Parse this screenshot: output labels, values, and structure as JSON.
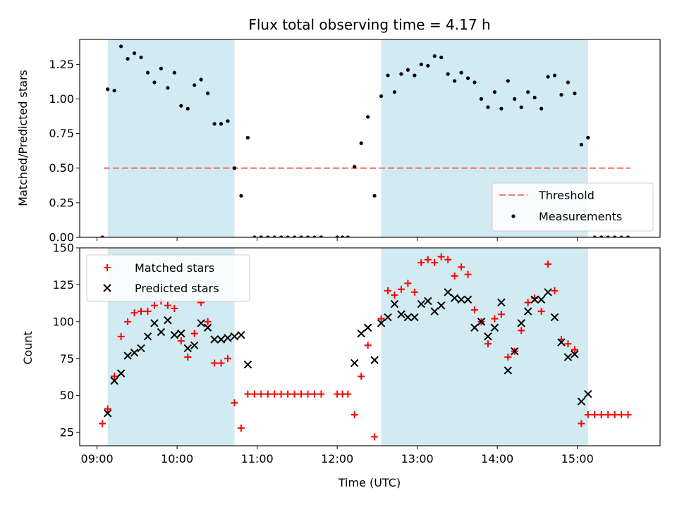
{
  "chart_data": [
    {
      "type": "scatter",
      "title": "Flux total observing time = 4.17 h",
      "xlabel": "",
      "ylabel": "Matched/Predicted stars",
      "xlim": [
        "08:47",
        "16:02"
      ],
      "ylim": [
        0,
        1.43
      ],
      "y_ticks": [
        0.0,
        0.25,
        0.5,
        0.75,
        1.0,
        1.25
      ],
      "y_tick_labels": [
        "0.00",
        "0.25",
        "0.50",
        "0.75",
        "1.00",
        "1.25"
      ],
      "threshold": {
        "name": "Threshold",
        "value": 0.5,
        "x_range": [
          "09:05",
          "15:40"
        ],
        "color": "#f47f7f"
      },
      "shaded_spans": [
        [
          "09:08",
          "10:43"
        ],
        [
          "12:33",
          "15:08"
        ]
      ],
      "shade_color": "#add8e6",
      "legend": {
        "position": "lower right",
        "entries": [
          "Threshold",
          "Measurements"
        ]
      },
      "series": [
        {
          "name": "Measurements",
          "color": "#000000",
          "points": [
            [
              "09:04",
              0.0
            ],
            [
              "09:08",
              1.07
            ],
            [
              "09:13",
              1.06
            ],
            [
              "09:18",
              1.38
            ],
            [
              "09:23",
              1.29
            ],
            [
              "09:28",
              1.33
            ],
            [
              "09:33",
              1.3
            ],
            [
              "09:38",
              1.19
            ],
            [
              "09:43",
              1.12
            ],
            [
              "09:48",
              1.22
            ],
            [
              "09:53",
              1.08
            ],
            [
              "09:58",
              1.19
            ],
            [
              "10:03",
              0.95
            ],
            [
              "10:08",
              0.93
            ],
            [
              "10:13",
              1.1
            ],
            [
              "10:18",
              1.14
            ],
            [
              "10:23",
              1.04
            ],
            [
              "10:28",
              0.82
            ],
            [
              "10:33",
              0.82
            ],
            [
              "10:38",
              0.84
            ],
            [
              "10:43",
              0.5
            ],
            [
              "10:48",
              0.3
            ],
            [
              "10:53",
              0.72
            ],
            [
              "10:58",
              0.0
            ],
            [
              "11:03",
              0.0
            ],
            [
              "11:08",
              0.0
            ],
            [
              "11:13",
              0.0
            ],
            [
              "11:18",
              0.0
            ],
            [
              "11:23",
              0.0
            ],
            [
              "11:28",
              0.0
            ],
            [
              "11:33",
              0.0
            ],
            [
              "11:38",
              0.0
            ],
            [
              "11:43",
              0.0
            ],
            [
              "11:48",
              0.0
            ],
            [
              "12:00",
              0.0
            ],
            [
              "12:04",
              0.0
            ],
            [
              "12:08",
              0.0
            ],
            [
              "12:13",
              0.51
            ],
            [
              "12:18",
              0.68
            ],
            [
              "12:23",
              0.87
            ],
            [
              "12:28",
              0.3
            ],
            [
              "12:33",
              1.02
            ],
            [
              "12:38",
              1.17
            ],
            [
              "12:43",
              1.05
            ],
            [
              "12:48",
              1.18
            ],
            [
              "12:53",
              1.21
            ],
            [
              "12:58",
              1.17
            ],
            [
              "13:03",
              1.25
            ],
            [
              "13:08",
              1.24
            ],
            [
              "13:13",
              1.31
            ],
            [
              "13:18",
              1.3
            ],
            [
              "13:23",
              1.18
            ],
            [
              "13:28",
              1.13
            ],
            [
              "13:33",
              1.19
            ],
            [
              "13:38",
              1.15
            ],
            [
              "13:43",
              1.12
            ],
            [
              "13:48",
              1.0
            ],
            [
              "13:53",
              0.94
            ],
            [
              "13:58",
              1.05
            ],
            [
              "14:03",
              0.93
            ],
            [
              "14:08",
              1.13
            ],
            [
              "14:13",
              1.0
            ],
            [
              "14:18",
              0.94
            ],
            [
              "14:23",
              1.05
            ],
            [
              "14:28",
              1.01
            ],
            [
              "14:33",
              0.93
            ],
            [
              "14:38",
              1.16
            ],
            [
              "14:43",
              1.17
            ],
            [
              "14:48",
              1.03
            ],
            [
              "14:53",
              1.12
            ],
            [
              "14:58",
              1.04
            ],
            [
              "15:03",
              0.67
            ],
            [
              "15:08",
              0.72
            ],
            [
              "15:13",
              0.0
            ],
            [
              "15:18",
              0.0
            ],
            [
              "15:23",
              0.0
            ],
            [
              "15:28",
              0.0
            ],
            [
              "15:33",
              0.0
            ],
            [
              "15:38",
              0.0
            ]
          ]
        }
      ]
    },
    {
      "type": "scatter",
      "title": "",
      "xlabel": "Time (UTC)",
      "ylabel": "Count",
      "xlim": [
        "08:47",
        "16:02"
      ],
      "ylim": [
        16,
        150
      ],
      "x_ticks": [
        "09:00",
        "10:00",
        "11:00",
        "12:00",
        "13:00",
        "14:00",
        "15:00"
      ],
      "y_ticks": [
        25,
        50,
        75,
        100,
        125,
        150
      ],
      "y_tick_labels": [
        "25",
        "50",
        "75",
        "100",
        "125",
        "150"
      ],
      "shaded_spans": [
        [
          "09:08",
          "10:43"
        ],
        [
          "12:33",
          "15:08"
        ]
      ],
      "shade_color": "#add8e6",
      "legend": {
        "position": "upper left",
        "entries": [
          "Matched stars",
          "Predicted stars"
        ]
      },
      "series": [
        {
          "name": "Matched stars",
          "marker": "+",
          "color": "#ff0000",
          "points": [
            [
              "09:04",
              31
            ],
            [
              "09:08",
              41
            ],
            [
              "09:13",
              63
            ],
            [
              "09:18",
              90
            ],
            [
              "09:23",
              100
            ],
            [
              "09:28",
              106
            ],
            [
              "09:33",
              107
            ],
            [
              "09:38",
              107
            ],
            [
              "09:43",
              111
            ],
            [
              "09:48",
              114
            ],
            [
              "09:53",
              111
            ],
            [
              "09:58",
              109
            ],
            [
              "10:03",
              87
            ],
            [
              "10:08",
              76
            ],
            [
              "10:13",
              92
            ],
            [
              "10:18",
              113
            ],
            [
              "10:23",
              100
            ],
            [
              "10:28",
              72
            ],
            [
              "10:33",
              72
            ],
            [
              "10:38",
              75
            ],
            [
              "10:43",
              45
            ],
            [
              "10:48",
              28
            ],
            [
              "10:53",
              51
            ],
            [
              "10:58",
              51
            ],
            [
              "11:03",
              51
            ],
            [
              "11:08",
              51
            ],
            [
              "11:13",
              51
            ],
            [
              "11:18",
              51
            ],
            [
              "11:23",
              51
            ],
            [
              "11:28",
              51
            ],
            [
              "11:33",
              51
            ],
            [
              "11:38",
              51
            ],
            [
              "11:43",
              51
            ],
            [
              "11:48",
              51
            ],
            [
              "12:00",
              51
            ],
            [
              "12:04",
              51
            ],
            [
              "12:08",
              51
            ],
            [
              "12:13",
              37
            ],
            [
              "12:18",
              63
            ],
            [
              "12:23",
              84
            ],
            [
              "12:28",
              22
            ],
            [
              "12:33",
              102
            ],
            [
              "12:38",
              121
            ],
            [
              "12:43",
              118
            ],
            [
              "12:48",
              122
            ],
            [
              "12:53",
              126
            ],
            [
              "12:58",
              120
            ],
            [
              "13:03",
              140
            ],
            [
              "13:08",
              142
            ],
            [
              "13:13",
              140
            ],
            [
              "13:18",
              144
            ],
            [
              "13:23",
              142
            ],
            [
              "13:28",
              131
            ],
            [
              "13:33",
              137
            ],
            [
              "13:38",
              132
            ],
            [
              "13:43",
              108
            ],
            [
              "13:48",
              100
            ],
            [
              "13:53",
              85
            ],
            [
              "13:58",
              102
            ],
            [
              "14:03",
              105
            ],
            [
              "14:08",
              76
            ],
            [
              "14:13",
              80
            ],
            [
              "14:18",
              94
            ],
            [
              "14:23",
              113
            ],
            [
              "14:28",
              116
            ],
            [
              "14:33",
              107
            ],
            [
              "14:38",
              139
            ],
            [
              "14:43",
              121
            ],
            [
              "14:48",
              88
            ],
            [
              "14:53",
              85
            ],
            [
              "14:58",
              81
            ],
            [
              "15:03",
              31
            ],
            [
              "15:08",
              37
            ],
            [
              "15:13",
              37
            ],
            [
              "15:18",
              37
            ],
            [
              "15:23",
              37
            ],
            [
              "15:28",
              37
            ],
            [
              "15:33",
              37
            ],
            [
              "15:38",
              37
            ]
          ]
        },
        {
          "name": "Predicted stars",
          "marker": "x",
          "color": "#000000",
          "points": [
            [
              "09:08",
              38
            ],
            [
              "09:13",
              60
            ],
            [
              "09:18",
              65
            ],
            [
              "09:23",
              77
            ],
            [
              "09:28",
              79
            ],
            [
              "09:33",
              82
            ],
            [
              "09:38",
              90
            ],
            [
              "09:43",
              99
            ],
            [
              "09:48",
              93
            ],
            [
              "09:53",
              101
            ],
            [
              "09:58",
              91
            ],
            [
              "10:03",
              92
            ],
            [
              "10:08",
              82
            ],
            [
              "10:13",
              84
            ],
            [
              "10:18",
              99
            ],
            [
              "10:23",
              96
            ],
            [
              "10:28",
              88
            ],
            [
              "10:33",
              88
            ],
            [
              "10:38",
              89
            ],
            [
              "10:43",
              90
            ],
            [
              "10:48",
              91
            ],
            [
              "10:53",
              71
            ],
            [
              "12:13",
              72
            ],
            [
              "12:18",
              92
            ],
            [
              "12:23",
              96
            ],
            [
              "12:28",
              74
            ],
            [
              "12:33",
              99
            ],
            [
              "12:38",
              103
            ],
            [
              "12:43",
              112
            ],
            [
              "12:48",
              105
            ],
            [
              "12:53",
              103
            ],
            [
              "12:58",
              103
            ],
            [
              "13:03",
              112
            ],
            [
              "13:08",
              114
            ],
            [
              "13:13",
              107
            ],
            [
              "13:18",
              111
            ],
            [
              "13:23",
              120
            ],
            [
              "13:28",
              116
            ],
            [
              "13:33",
              115
            ],
            [
              "13:38",
              115
            ],
            [
              "13:43",
              96
            ],
            [
              "13:48",
              100
            ],
            [
              "13:53",
              90
            ],
            [
              "13:58",
              96
            ],
            [
              "14:03",
              113
            ],
            [
              "14:08",
              67
            ],
            [
              "14:13",
              80
            ],
            [
              "14:18",
              99
            ],
            [
              "14:23",
              107
            ],
            [
              "14:28",
              115
            ],
            [
              "14:33",
              115
            ],
            [
              "14:38",
              120
            ],
            [
              "14:43",
              103
            ],
            [
              "14:48",
              86
            ],
            [
              "14:53",
              76
            ],
            [
              "14:58",
              78
            ],
            [
              "15:03",
              46
            ],
            [
              "15:08",
              51
            ]
          ]
        }
      ]
    }
  ]
}
